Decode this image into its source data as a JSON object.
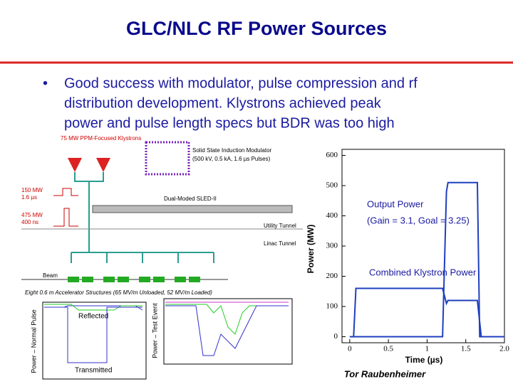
{
  "title": "GLC/NLC RF Power Sources",
  "bullet": [
    "Good success with modulator, pulse compression and rf",
    "distribution development.  Klystrons achieved peak",
    "power and pulse length specs but BDR was too high"
  ],
  "diagram": {
    "klystrons": "75 MW PPM-Focused Klystrons",
    "modulator": [
      "Solid State Induction Modulator",
      "(500 kV, 0.5 kA, 1.6 µs Pulses)"
    ],
    "pulse_in": [
      "150 MW",
      "1.6 µs"
    ],
    "pulse_out": [
      "475 MW",
      "400 ns"
    ],
    "sled": "Dual-Moded SLED-II",
    "utility": "Utility Tunnel",
    "linac": "Linac Tunnel",
    "beam": "Beam",
    "structures": "Eight 0.6 m Accelerator Structures (65 MV/m Unloaded, 52 MV/m Loaded)",
    "plot_normal_axis": "Power – Normal Pulse",
    "reflected": "Reflected",
    "transmitted": "Transmitted",
    "plot_test_axis": "Power – Test Event"
  },
  "chart_data": {
    "type": "line",
    "x_label": "Time (µs)",
    "y_label": "Power (MW)",
    "annotations": [
      "Output Power",
      "(Gain = 3.1, Goal = 3.25)",
      "Combined Klystron Power"
    ],
    "series": [
      {
        "name": "Output Power",
        "color": "#1f3fbf",
        "x": [
          0,
          1.2,
          1.25,
          1.27,
          1.65,
          1.68,
          2.0
        ],
        "values": [
          0,
          0,
          480,
          510,
          510,
          0,
          0
        ]
      },
      {
        "name": "Combined Klystron Power",
        "color": "#1f3fbf",
        "x": [
          0,
          0.05,
          0.08,
          1.2,
          1.25,
          1.27,
          1.65,
          1.7,
          2.0
        ],
        "values": [
          0,
          0,
          160,
          160,
          110,
          120,
          120,
          0,
          0
        ]
      }
    ],
    "xlim": [
      -0.1,
      2.0
    ],
    "ylim": [
      -20,
      620
    ],
    "xticks": [
      0,
      0.5,
      1,
      1.5,
      {
        "value": 2,
        "label": "2.0"
      }
    ],
    "yticks": [
      0,
      100,
      200,
      300,
      400,
      500,
      600
    ]
  },
  "author": "Tor Raubenheimer"
}
